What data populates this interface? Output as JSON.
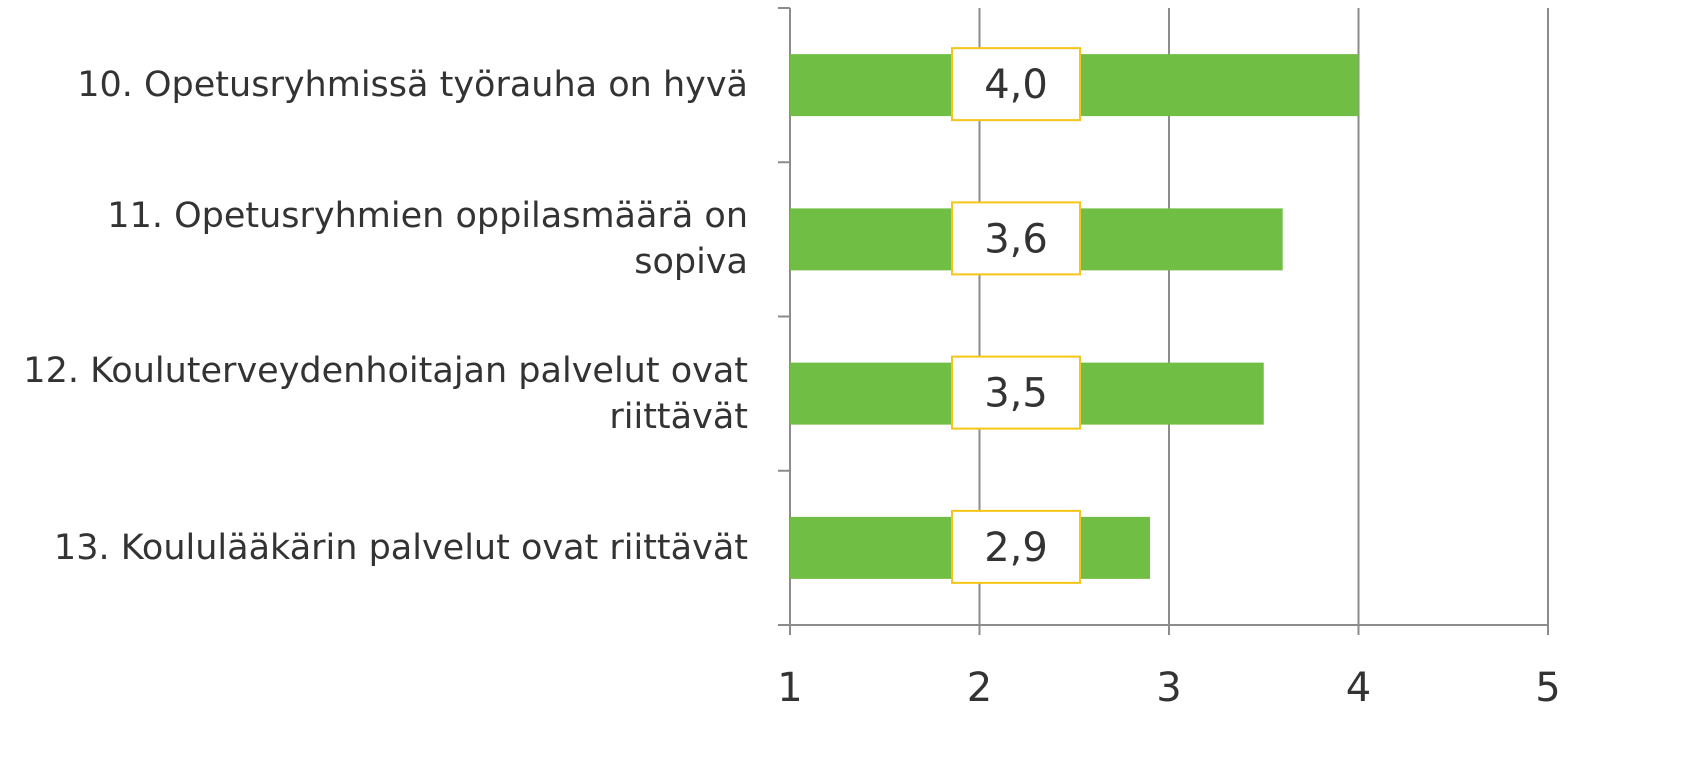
{
  "chart_data": {
    "type": "bar",
    "orientation": "horizontal",
    "categories": [
      "10. Opetusryhmissä työrauha on hyvä",
      "11. Opetusryhmien oppilasmäärä on sopiva",
      "12. Kouluterveydenhoitajan palvelut ovat riittävät",
      "13. Koululääkärin palvelut ovat riittävät"
    ],
    "values": [
      4.0,
      3.6,
      3.5,
      2.9
    ],
    "value_labels": [
      "4,0",
      "3,6",
      "3,5",
      "2,9"
    ],
    "color": "#70bf44",
    "xlim": [
      1,
      5
    ],
    "xticks": [
      1,
      2,
      3,
      4,
      5
    ],
    "grid": true
  }
}
